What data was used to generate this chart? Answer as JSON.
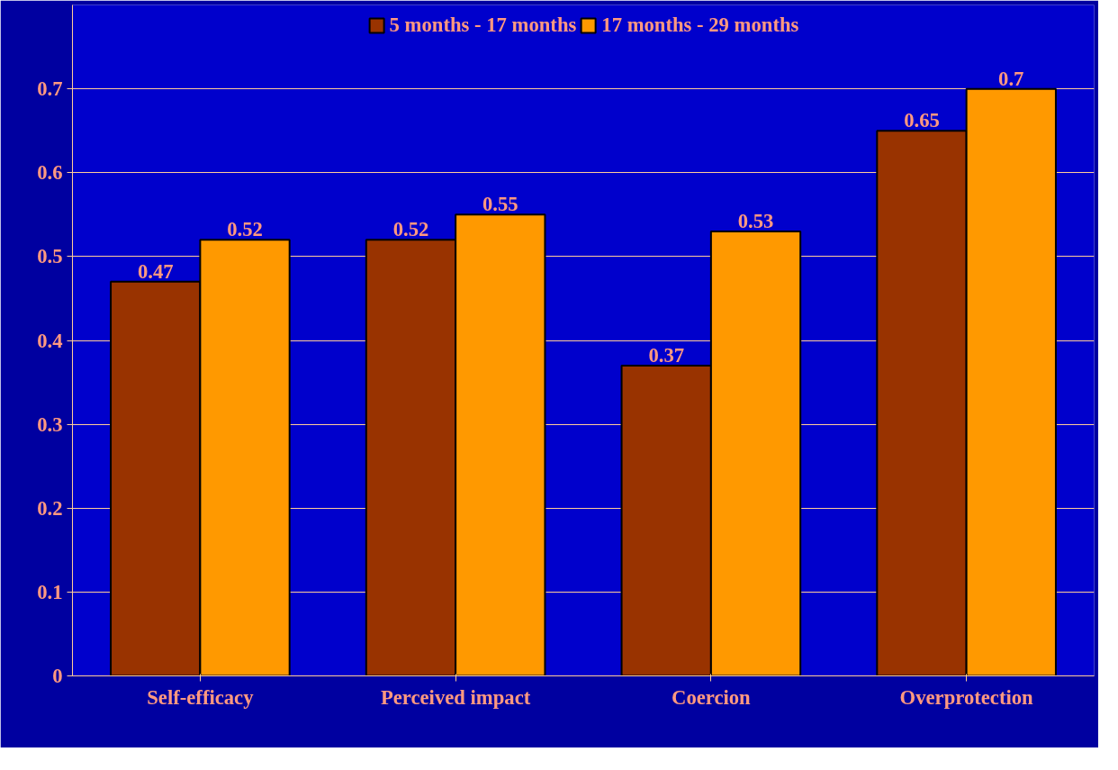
{
  "chart_data": {
    "type": "bar",
    "categories": [
      "Self-efficacy",
      "Perceived impact",
      "Coercion",
      "Overprotection"
    ],
    "series": [
      {
        "name": "5 months - 17 months",
        "color": "#993300",
        "values": [
          0.47,
          0.52,
          0.37,
          0.65
        ]
      },
      {
        "name": "17 months - 29 months",
        "color": "#ff9900",
        "values": [
          0.52,
          0.55,
          0.53,
          0.7
        ]
      }
    ],
    "ylim": [
      0,
      0.8
    ],
    "yticks": [
      0,
      0.1,
      0.2,
      0.3,
      0.4,
      0.5,
      0.6,
      0.7
    ],
    "grid": "y",
    "legend": "top",
    "data_labels": true
  }
}
